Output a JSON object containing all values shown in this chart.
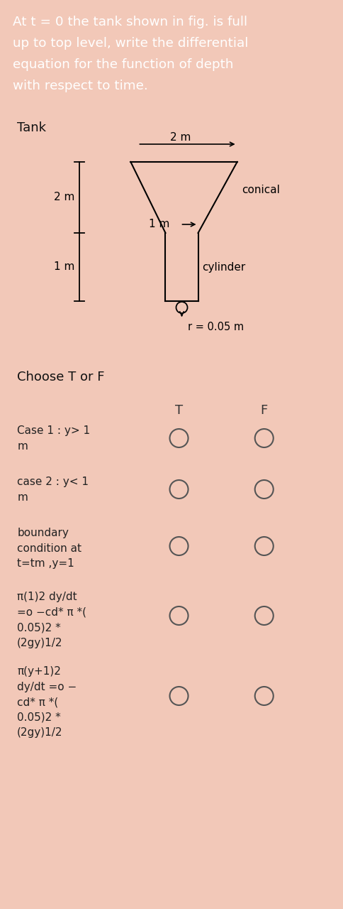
{
  "header_text_lines": [
    "At t = 0 the tank shown in fig. is full",
    "up to top level, write the differential",
    "equation for the function of depth",
    "with respect to time."
  ],
  "header_bg": "#E05010",
  "header_text_color": "#FFFFFF",
  "card_bg": "#FFFFFF",
  "page_bg": "#F2C8B8",
  "tank_label": "Tank",
  "conical_label": "conical",
  "cylinder_label": "cylinder",
  "r_label": "r = 0.05 m",
  "dim_2m_top": "2 m",
  "dim_2m_left": "2 m",
  "dim_1m_mid": "1 m",
  "dim_1m_bot": "1 m",
  "choose_label": "Choose T or F",
  "T_label": "T",
  "F_label": "F",
  "rows": [
    {
      "text": "Case 1 : y> 1\nm",
      "T_filled": false,
      "F_filled": false
    },
    {
      "text": "case 2 : y< 1\nm",
      "T_filled": false,
      "F_filled": false
    },
    {
      "text": "boundary\ncondition at\nt=tm ,y=1",
      "T_filled": false,
      "F_filled": false
    },
    {
      "text": "π(1)2 dy/dt\n=o −cd* π *(\n0.05)2 *\n(2gy)1/2",
      "T_filled": false,
      "F_filled": false
    },
    {
      "text": "π(y+1)2\ndy/dt =o −\ncd* π *(\n0.05)2 *\n(2gy)1/2",
      "T_filled": false,
      "F_filled": false
    }
  ]
}
